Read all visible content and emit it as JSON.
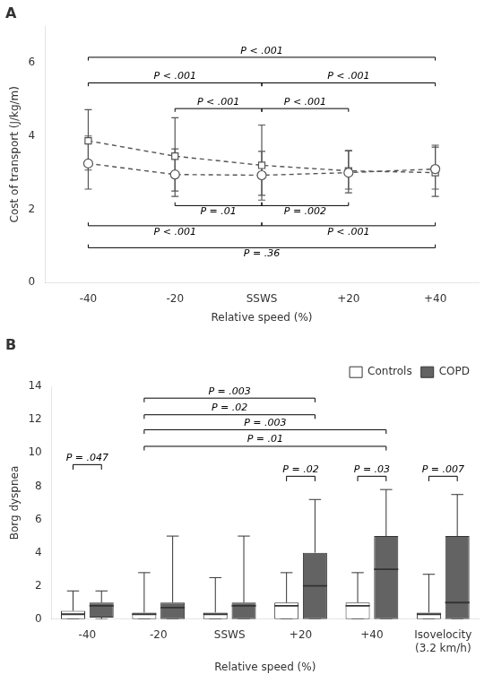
{
  "chart_data": [
    {
      "type": "line",
      "title": "A",
      "categories": [
        "-40",
        "-20",
        "SSWS",
        "+20",
        "+40"
      ],
      "series": [
        {
          "marker": "circle",
          "line_style": "dashed",
          "color": "#555555",
          "values": [
            3.25,
            2.95,
            2.93,
            3.0,
            3.1
          ],
          "err_upper": [
            0.75,
            0.7,
            0.65,
            0.6,
            0.6
          ],
          "err_lower": [
            0.7,
            0.6,
            0.55,
            0.55,
            0.55
          ]
        },
        {
          "marker": "square",
          "line_style": "dashed",
          "color": "#555555",
          "values": [
            3.87,
            3.45,
            3.2,
            3.05,
            3.0
          ],
          "err_upper": [
            0.85,
            1.05,
            1.1,
            0.55,
            0.75
          ],
          "err_lower": [
            0.8,
            0.95,
            0.95,
            0.5,
            0.65
          ]
        }
      ],
      "xlabel": "Relative speed (%)",
      "ylabel": "Cost of transport (J/kg/m)",
      "ylim": [
        0,
        7
      ],
      "yticks": [
        0,
        2,
        4,
        6
      ],
      "grid": false,
      "annotations": [
        {
          "type": "bracket_down",
          "x1": "-40",
          "x2": "+40",
          "y": 6.15,
          "label": "P < .001"
        },
        {
          "type": "bracket_down",
          "x1": "-40",
          "x2": "SSWS",
          "y": 5.45,
          "label": "P < .001"
        },
        {
          "type": "bracket_down",
          "x1": "SSWS",
          "x2": "+40",
          "y": 5.45,
          "label": "P < .001"
        },
        {
          "type": "bracket_down",
          "x1": "-20",
          "x2": "SSWS",
          "y": 4.75,
          "label": "P < .001"
        },
        {
          "type": "bracket_down",
          "x1": "SSWS",
          "x2": "+20",
          "y": 4.75,
          "label": "P < .001"
        },
        {
          "type": "bracket_up",
          "x1": "-20",
          "x2": "SSWS",
          "y": 2.1,
          "label": "P = .01"
        },
        {
          "type": "bracket_up",
          "x1": "SSWS",
          "x2": "+20",
          "y": 2.1,
          "label": "P = .002"
        },
        {
          "type": "bracket_up",
          "x1": "-40",
          "x2": "SSWS",
          "y": 1.55,
          "label": "P < .001"
        },
        {
          "type": "bracket_up",
          "x1": "SSWS",
          "x2": "+40",
          "y": 1.55,
          "label": "P < .001"
        },
        {
          "type": "bracket_up",
          "x1": "-40",
          "x2": "+40",
          "y": 0.95,
          "label": "P = .36"
        }
      ]
    },
    {
      "type": "box",
      "title": "B",
      "categories": [
        "-40",
        "-20",
        "SSWS",
        "+20",
        "+40",
        "Isovelocity\n(3.2 km/h)"
      ],
      "series": [
        {
          "name": "Controls",
          "color": "#ffffff",
          "q1": [
            0.0,
            0.0,
            0.0,
            0.0,
            0.0,
            0.0
          ],
          "median": [
            0.3,
            0.3,
            0.3,
            0.8,
            0.8,
            0.3
          ],
          "q3": [
            0.5,
            0.4,
            0.4,
            1.0,
            1.0,
            0.4
          ],
          "whisker_low": [
            0.0,
            0.0,
            0.0,
            0.0,
            0.0,
            0.0
          ],
          "whisker_high": [
            1.7,
            2.8,
            2.5,
            2.8,
            2.8,
            2.7
          ]
        },
        {
          "name": "COPD",
          "color": "#636363",
          "q1": [
            0.1,
            0.0,
            0.0,
            0.0,
            0.0,
            0.0
          ],
          "median": [
            0.8,
            0.7,
            0.8,
            2.0,
            3.0,
            1.0
          ],
          "q3": [
            1.0,
            1.0,
            1.0,
            4.0,
            5.0,
            5.0
          ],
          "whisker_low": [
            0.0,
            0.0,
            0.0,
            0.0,
            0.0,
            0.0
          ],
          "whisker_high": [
            1.7,
            5.0,
            5.0,
            7.2,
            7.8,
            7.5
          ]
        }
      ],
      "xlabel": "Relative speed (%)",
      "ylabel": "Borg dyspnea",
      "ylim": [
        0,
        14
      ],
      "yticks": [
        0,
        2,
        4,
        6,
        8,
        10,
        12,
        14
      ],
      "grid": false,
      "legend": "upper right",
      "annotations": [
        {
          "type": "bracket_pair",
          "category": "-40",
          "y": 9.3,
          "label": "P = .047"
        },
        {
          "type": "bracket_pair",
          "category": "+20",
          "y": 8.6,
          "label": "P = .02"
        },
        {
          "type": "bracket_pair",
          "category": "+40",
          "y": 8.6,
          "label": "P = .03"
        },
        {
          "type": "bracket_pair",
          "category": "Isovelocity\n(3.2 km/h)",
          "y": 8.6,
          "label": "P = .007"
        },
        {
          "type": "bracket_span",
          "x1": "-20",
          "x2": "+20",
          "y": 13.3,
          "label": "P = .003"
        },
        {
          "type": "bracket_span",
          "x1": "-20",
          "x2": "+20",
          "y": 12.3,
          "label": "P = .02"
        },
        {
          "type": "bracket_span",
          "x1": "-20",
          "x2": "+40",
          "y": 11.4,
          "label": "P = .003"
        },
        {
          "type": "bracket_span",
          "x1": "-20",
          "x2": "+40",
          "y": 10.4,
          "label": "P = .01"
        }
      ]
    }
  ]
}
